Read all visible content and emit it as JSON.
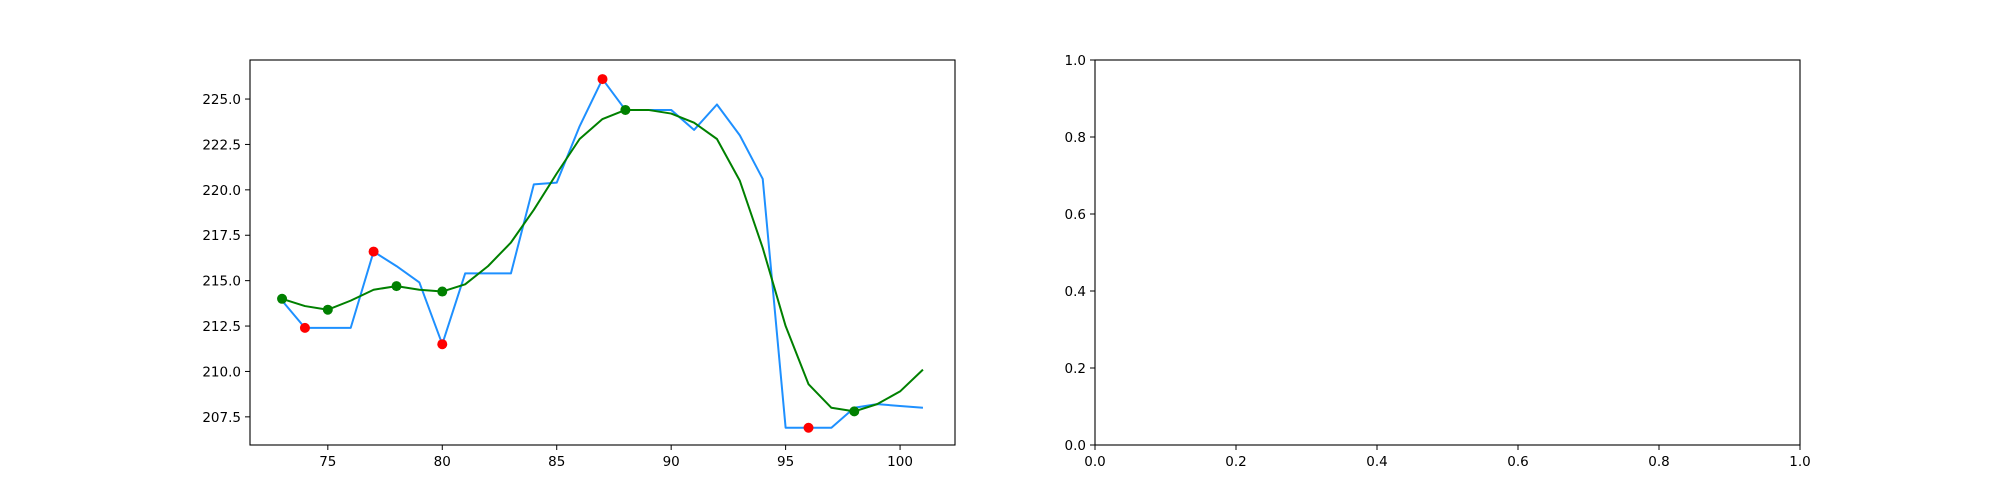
{
  "chart_data": [
    {
      "type": "line",
      "title": "",
      "xlabel": "",
      "ylabel": "",
      "xlim": [
        71.6,
        102.4
      ],
      "ylim": [
        205.95,
        227.15
      ],
      "xticks": [
        75,
        80,
        85,
        90,
        95,
        100
      ],
      "yticks": [
        207.5,
        210.0,
        212.5,
        215.0,
        217.5,
        220.0,
        222.5,
        225.0
      ],
      "x_tick_labels": [
        "75",
        "80",
        "85",
        "90",
        "95",
        "100"
      ],
      "y_tick_labels": [
        "207.5",
        "210.0",
        "212.5",
        "215.0",
        "217.5",
        "220.0",
        "222.5",
        "225.0"
      ],
      "grid": false,
      "series": [
        {
          "color": "#1e90ff",
          "x": [
            73,
            74,
            75,
            76,
            77,
            78,
            79,
            80,
            81,
            82,
            83,
            84,
            85,
            86,
            87,
            88,
            89,
            90,
            91,
            92,
            93,
            94,
            95,
            96,
            97,
            98,
            99,
            100,
            101
          ],
          "y": [
            213.9,
            212.4,
            212.4,
            212.4,
            216.6,
            215.8,
            214.9,
            211.5,
            215.4,
            215.4,
            215.4,
            220.3,
            220.4,
            223.5,
            226.1,
            224.4,
            224.4,
            224.4,
            223.3,
            224.7,
            223.0,
            220.6,
            206.9,
            206.9,
            206.9,
            208.0,
            208.2,
            208.1,
            208.0
          ]
        },
        {
          "color": "#008000",
          "x": [
            73,
            74,
            75,
            76,
            77,
            78,
            79,
            80,
            81,
            82,
            83,
            84,
            85,
            86,
            87,
            88,
            89,
            90,
            91,
            92,
            93,
            94,
            95,
            96,
            97,
            98,
            99,
            100,
            101
          ],
          "y": [
            214.0,
            213.6,
            213.4,
            213.9,
            214.5,
            214.7,
            214.5,
            214.4,
            214.8,
            215.8,
            217.1,
            218.9,
            220.9,
            222.8,
            223.9,
            224.4,
            224.4,
            224.2,
            223.7,
            222.8,
            220.5,
            216.8,
            212.5,
            209.3,
            208.0,
            207.8,
            208.2,
            208.9,
            210.1
          ]
        }
      ],
      "markers": [
        {
          "color": "#ff0000",
          "points": [
            [
              74,
              212.4
            ],
            [
              77,
              216.6
            ],
            [
              80,
              211.5
            ],
            [
              87,
              226.1
            ],
            [
              96,
              206.9
            ]
          ]
        },
        {
          "color": "#008000",
          "points": [
            [
              73,
              214.0
            ],
            [
              75,
              213.4
            ],
            [
              78,
              214.7
            ],
            [
              80,
              214.4
            ],
            [
              88,
              224.4
            ],
            [
              98,
              207.8
            ]
          ]
        }
      ]
    },
    {
      "type": "line",
      "title": "",
      "xlabel": "",
      "ylabel": "",
      "xlim": [
        0,
        1
      ],
      "ylim": [
        0,
        1
      ],
      "xticks": [
        0,
        0.2,
        0.4,
        0.6,
        0.8,
        1.0
      ],
      "yticks": [
        0,
        0.2,
        0.4,
        0.6,
        0.8,
        1.0
      ],
      "x_tick_labels": [
        "0.0",
        "0.2",
        "0.4",
        "0.6",
        "0.8",
        "1.0"
      ],
      "y_tick_labels": [
        "0.0",
        "0.2",
        "0.4",
        "0.6",
        "0.8",
        "1.0"
      ],
      "grid": false,
      "series": []
    }
  ]
}
